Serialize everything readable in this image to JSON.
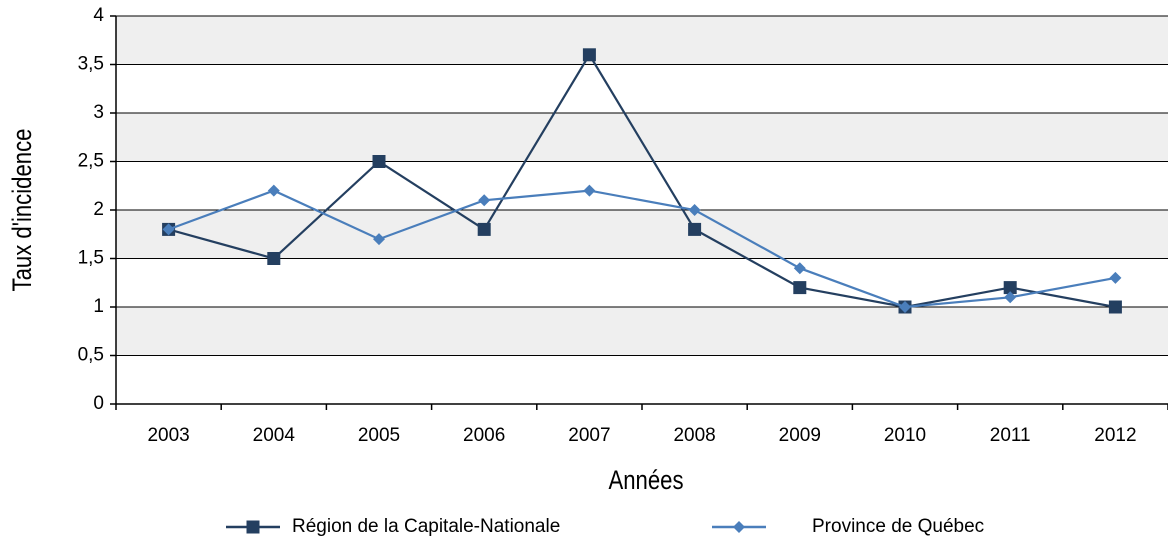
{
  "chart_data": {
    "type": "line",
    "x_label": "Années",
    "y_label": "Taux d'incidence",
    "categories": [
      "2003",
      "2004",
      "2005",
      "2006",
      "2007",
      "2008",
      "2009",
      "2010",
      "2011",
      "2012"
    ],
    "series": [
      {
        "name": "Région de la Capitale-Nationale",
        "color": "#243f60",
        "marker": "square",
        "values": [
          1.8,
          1.5,
          2.5,
          1.8,
          3.6,
          1.8,
          1.2,
          1.0,
          1.2,
          1.0
        ]
      },
      {
        "name": "Province de Québec",
        "color": "#4a7ebb",
        "marker": "diamond",
        "values": [
          1.8,
          2.2,
          1.7,
          2.1,
          2.2,
          2.0,
          1.4,
          1.0,
          1.1,
          1.3
        ]
      }
    ],
    "ylim": [
      0,
      4
    ],
    "yticks": [
      0,
      {
        "value": 0.5,
        "label": "0,5"
      },
      1,
      {
        "value": 1.5,
        "label": "1,5"
      },
      2,
      {
        "value": 2.5,
        "label": "2,5"
      },
      3,
      {
        "value": 3.5,
        "label": "3,5"
      },
      4
    ],
    "grid": true,
    "banded_background": true,
    "legend": "bottom"
  }
}
